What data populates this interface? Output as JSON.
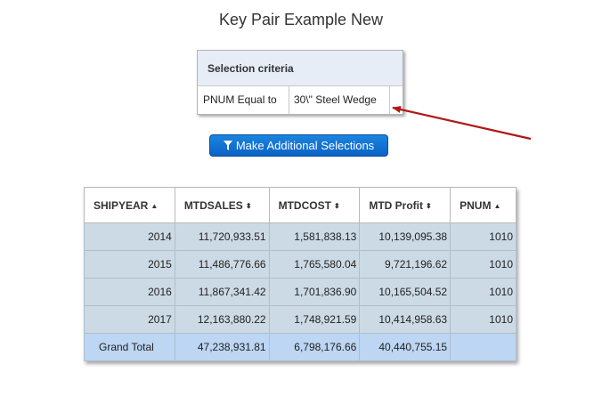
{
  "page": {
    "title": "Key Pair Example New"
  },
  "criteria": {
    "header": "Selection criteria",
    "field": "PNUM Equal to",
    "value": "30\\\" Steel Wedge"
  },
  "button": {
    "label": "Make Additional Selections",
    "icon": "filter-icon",
    "color": "#1a7bd8"
  },
  "annotation": {
    "arrow_color": "#b01818"
  },
  "table": {
    "columns": [
      {
        "label": "SHIPYEAR",
        "sort_icon": "▲"
      },
      {
        "label": "MTDSALES",
        "sort_icon": "⬍"
      },
      {
        "label": "MTDCOST",
        "sort_icon": "⬍"
      },
      {
        "label": "MTD Profit",
        "sort_icon": "⬍"
      },
      {
        "label": "PNUM",
        "sort_icon": "▲"
      }
    ],
    "rows": [
      [
        "2014",
        "11,720,933.51",
        "1,581,838.13",
        "10,139,095.38",
        "1010"
      ],
      [
        "2015",
        "11,486,776.66",
        "1,765,580.04",
        "9,721,196.62",
        "1010"
      ],
      [
        "2016",
        "11,867,341.42",
        "1,701,836.90",
        "10,165,504.52",
        "1010"
      ],
      [
        "2017",
        "12,163,880.22",
        "1,748,921.59",
        "10,414,958.63",
        "1010"
      ]
    ],
    "total": [
      "Grand Total",
      "47,238,931.81",
      "6,798,176.66",
      "40,440,755.15",
      ""
    ]
  }
}
